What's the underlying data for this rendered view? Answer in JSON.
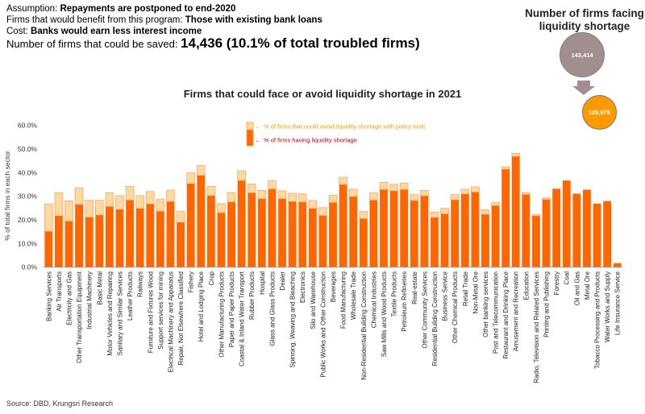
{
  "header": {
    "assumption_label": "Assumption: ",
    "assumption_value": "Repayments are postponed to end-2020",
    "benefit_label": "Firms that would benefit from this program: ",
    "benefit_value": "Those with existing bank loans",
    "cost_label": "Cost: ",
    "cost_value": "Banks would earn less interest income",
    "saved_label": "Number of firms that could be saved: ",
    "saved_value": "14,436 (10.1% of total troubled firms)"
  },
  "side_panel": {
    "title": "Number of firms facing liquidity shortage",
    "before": "143,414",
    "after": "128,978",
    "colors": {
      "before": "#a08f8e",
      "after": "#ff9900"
    }
  },
  "source": "Source: DBD, Krungsri Research",
  "chart_data": {
    "type": "bar",
    "stacked": true,
    "title": "Firms that could face or avoid liquidity shortage in 2021",
    "xlabel": "",
    "ylabel": "% of total firms in each sector",
    "ylim": [
      0,
      60
    ],
    "yticks": [
      "0.0%",
      "10.0%",
      "20.0%",
      "30.0%",
      "40.0%",
      "50.0%",
      "60.0%"
    ],
    "legend": {
      "position": "top-center",
      "entries": [
        "% of firms that could avoid liquidity shortage with policy tools",
        "% of firms having liquidity shortage"
      ]
    },
    "colors": {
      "shortage": "#ff6600",
      "avoid": "#ffd9a0",
      "avoid_border": "#f9a66c",
      "legend_avoid_text": "#ff9900",
      "legend_short_text": "#c00000"
    },
    "categories": [
      "Banking Services",
      "Air Transports",
      "Electricity and Gas",
      "Other Transportation Equipment",
      "Industrial Machinery",
      "Basic Metal",
      "Motor Vehicles and Repairing",
      "Sanitary and Similar Services",
      "Leather Products",
      "Railways",
      "Furniture and Fixtures Wood",
      "Support services for mining",
      "Electrical Machinery and Apparatus",
      "Repair, Not Elsewhere Classified",
      "Fishery",
      "Hotel and Lodging Place",
      "Crop",
      "Other Manufacturing Products",
      "Paper and Paper Products",
      "Coastal & Inland Water Transport",
      "Rubber Products",
      "Hospital",
      "Glass and Glass Products",
      "Dealer",
      "Spinning, Weaving and Bleaching",
      "Electronics",
      "Silo and Warehouse",
      "Public Works and Other Construction",
      "Beverages",
      "Food Manufacturing",
      "Wholesale Trade",
      "Non-Residential Building Construction",
      "Chemical Industries",
      "Saw Mills and Wood Products",
      "Textile Products",
      "Petroleum Refineries",
      "Real-estate",
      "Other Community Services",
      "Residential Building Construction",
      "Business Service",
      "Other Chemical Products",
      "Retail Trade",
      "Non-Metal Ore",
      "Other banking services",
      "Post and Telecommunication",
      "Restaurant and Drinking Place",
      "Amusement and Recreation",
      "Education",
      "Radio, Television and Related Services",
      "Printing and Publishing",
      "Forestry",
      "Coal",
      "Oil and Gas",
      "Metal Ore",
      "Tobacco Processing and Products",
      "Water Works and Supply",
      "Life Insurance Service"
    ],
    "series": [
      {
        "name": "% of firms having liquidity shortage",
        "values": [
          15.1,
          21.7,
          19.4,
          26.5,
          21.1,
          22.0,
          25.6,
          24.4,
          28.3,
          24.8,
          26.7,
          23.6,
          27.7,
          18.9,
          35.3,
          38.8,
          30.2,
          23.0,
          27.5,
          36.6,
          31.4,
          28.9,
          33.0,
          28.9,
          27.7,
          27.5,
          24.8,
          21.8,
          27.3,
          34.9,
          29.8,
          20.5,
          28.3,
          32.8,
          32.2,
          32.8,
          28.1,
          30.1,
          21.0,
          22.5,
          28.4,
          30.9,
          31.7,
          22.3,
          26.0,
          41.4,
          46.8,
          30.7,
          21.6,
          28.6,
          33.0,
          36.7,
          31.1,
          32.8,
          26.9,
          28.0,
          1.7
        ]
      },
      {
        "name": "% of firms that could avoid liquidity shortage with policy tools",
        "values": [
          11.6,
          9.8,
          8.7,
          7.0,
          7.2,
          6.3,
          5.9,
          5.9,
          5.9,
          5.5,
          5.3,
          5.2,
          4.9,
          4.7,
          4.6,
          4.2,
          4.0,
          3.9,
          4.0,
          4.2,
          3.8,
          3.6,
          3.6,
          3.4,
          3.6,
          3.5,
          3.4,
          3.4,
          3.2,
          3.2,
          3.2,
          3.1,
          3.1,
          3.1,
          2.9,
          2.8,
          2.6,
          2.4,
          2.3,
          2.4,
          2.3,
          2.1,
          2.3,
          2.0,
          1.4,
          1.1,
          1.4,
          0.9,
          0.7,
          0.7,
          0.2,
          0,
          0,
          0,
          0,
          0,
          0
        ]
      }
    ]
  }
}
